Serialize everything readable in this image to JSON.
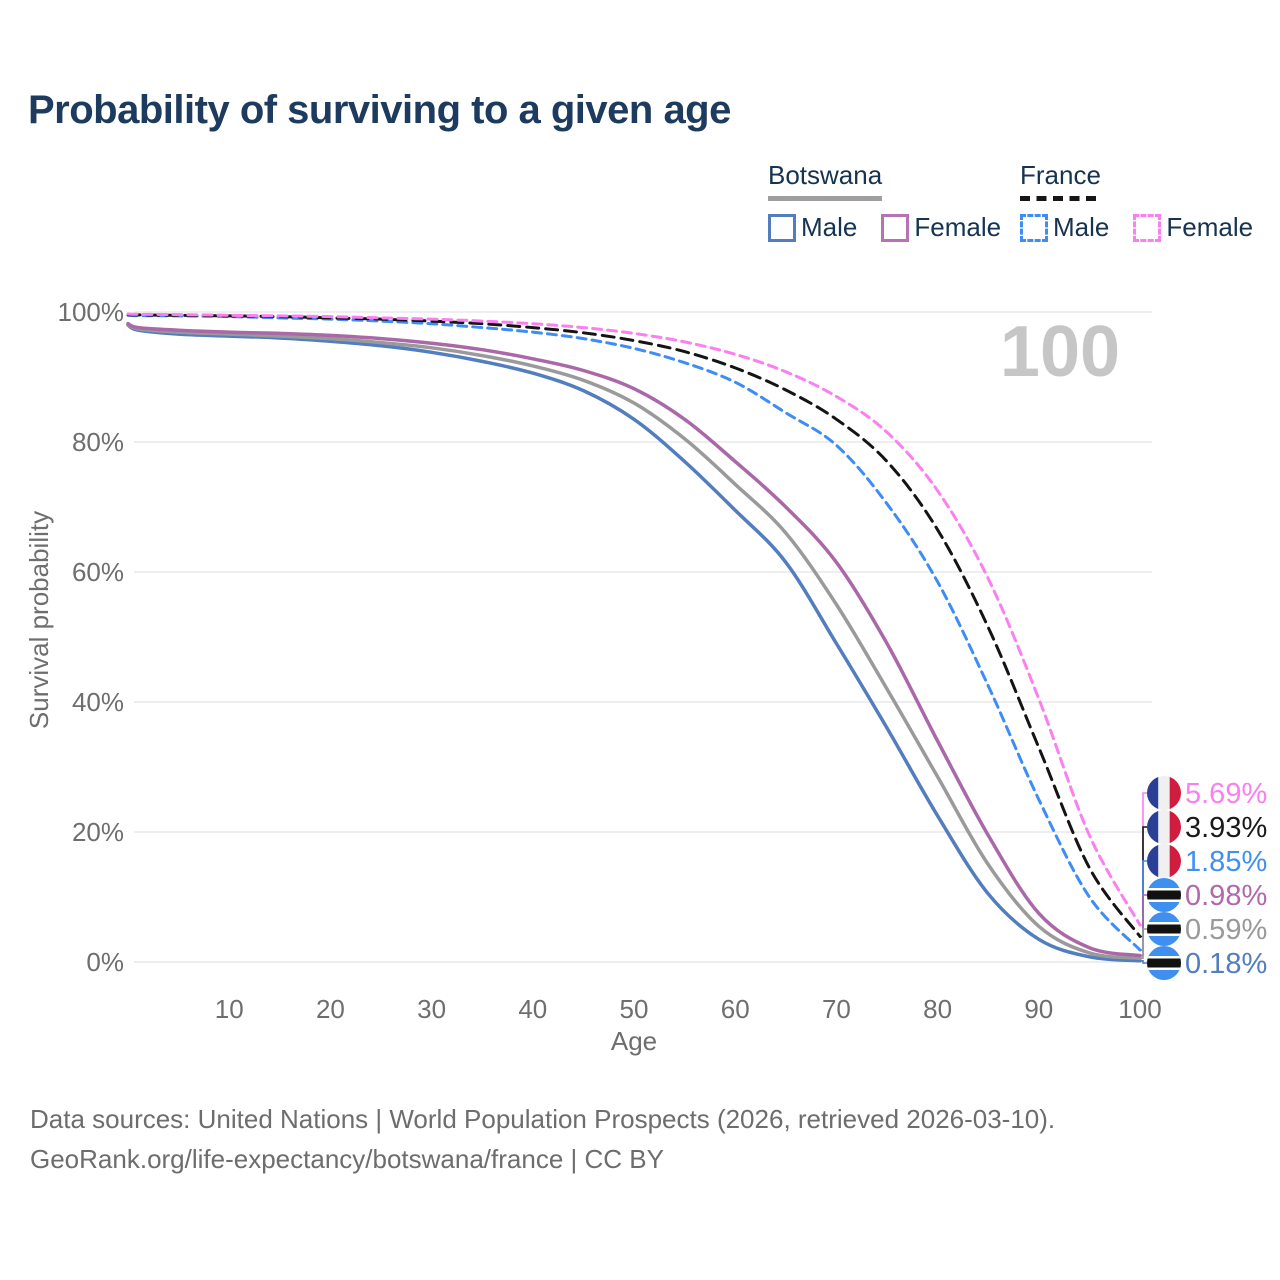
{
  "header": {
    "title": "Probability of surviving to a given age"
  },
  "legend": {
    "groups": [
      {
        "label": "Botswana",
        "line_style": "solid",
        "underline_color": "#9e9e9e",
        "items": [
          {
            "label": "Male",
            "color": "#527dbe"
          },
          {
            "label": "Female",
            "color": "#b673b4"
          }
        ]
      },
      {
        "label": "France",
        "line_style": "dashed",
        "underline_color": "#161616",
        "items": [
          {
            "label": "Male",
            "color": "#3d8df5"
          },
          {
            "label": "Female",
            "color": "#fb7ff0"
          }
        ]
      }
    ]
  },
  "chart_data": {
    "type": "line",
    "title": "Probability of surviving to a given age",
    "xlabel": "Age",
    "ylabel": "Survival probability",
    "xlim": [
      0,
      100
    ],
    "ylim": [
      0,
      100
    ],
    "grid": "horizontal",
    "grid_color": "#e8e8e8",
    "axis_text_color": "#6e6e6e",
    "annotation": {
      "text": "100",
      "color": "#c6c6c6"
    },
    "x_ticks": [
      "10",
      "20",
      "30",
      "40",
      "50",
      "60",
      "70",
      "80",
      "90",
      "100"
    ],
    "x_tick_values": [
      10,
      20,
      30,
      40,
      50,
      60,
      70,
      80,
      90,
      100
    ],
    "y_ticks": [
      "0%",
      "20%",
      "40%",
      "60%",
      "80%",
      "100%"
    ],
    "y_tick_values": [
      0,
      20,
      40,
      60,
      80,
      100
    ],
    "ages": [
      0,
      1,
      5,
      10,
      15,
      20,
      25,
      30,
      35,
      40,
      45,
      50,
      55,
      60,
      65,
      70,
      75,
      80,
      85,
      90,
      95,
      100
    ],
    "series": [
      {
        "name": "Botswana Male",
        "country": "Botswana",
        "sex": "Male",
        "style": "solid",
        "color": "#527dbe",
        "end_label": "0.18%",
        "end_label_color": "#527dbe",
        "values": [
          98.0,
          97.2,
          96.6,
          96.3,
          96.0,
          95.5,
          94.8,
          93.8,
          92.4,
          90.6,
          87.9,
          83.5,
          77.0,
          69.5,
          61.5,
          49.0,
          36.0,
          22.5,
          10.5,
          3.5,
          0.8,
          0.18
        ]
      },
      {
        "name": "Botswana",
        "country": "Botswana",
        "sex": "Both",
        "style": "solid",
        "color": "#9a9a9a",
        "end_label": "0.59%",
        "end_label_color": "#9a9a9a",
        "values": [
          98.1,
          97.4,
          96.9,
          96.6,
          96.3,
          95.9,
          95.3,
          94.5,
          93.3,
          91.7,
          89.5,
          86.0,
          80.5,
          73.5,
          66.0,
          55.0,
          42.0,
          28.5,
          15.0,
          5.5,
          1.4,
          0.59
        ]
      },
      {
        "name": "Botswana Female",
        "country": "Botswana",
        "sex": "Female",
        "style": "solid",
        "color": "#aa68a8",
        "end_label": "0.98%",
        "end_label_color": "#b168ad",
        "values": [
          98.2,
          97.6,
          97.2,
          96.9,
          96.7,
          96.4,
          95.9,
          95.2,
          94.2,
          92.8,
          91.0,
          88.2,
          83.5,
          77.0,
          70.0,
          61.5,
          49.0,
          34.0,
          19.5,
          7.5,
          2.2,
          0.98
        ]
      },
      {
        "name": "France Male",
        "country": "France",
        "sex": "Male",
        "style": "dashed",
        "color": "#3d8df5",
        "end_label": "1.85%",
        "end_label_color": "#4090f0",
        "values": [
          99.5,
          99.45,
          99.4,
          99.3,
          99.1,
          98.9,
          98.6,
          98.2,
          97.6,
          96.9,
          95.9,
          94.4,
          92.2,
          89.2,
          84.5,
          79.5,
          70.5,
          58.5,
          42.5,
          25.0,
          10.0,
          1.85
        ]
      },
      {
        "name": "France",
        "country": "France",
        "sex": "Both",
        "style": "dashed",
        "color": "#141414",
        "end_label": "3.93%",
        "end_label_color": "#1a1a1a",
        "values": [
          99.6,
          99.55,
          99.5,
          99.4,
          99.3,
          99.1,
          98.9,
          98.6,
          98.2,
          97.6,
          96.8,
          95.6,
          93.9,
          91.4,
          88.0,
          83.5,
          77.0,
          66.5,
          51.5,
          33.0,
          14.5,
          3.93
        ]
      },
      {
        "name": "France Female",
        "country": "France",
        "sex": "Female",
        "style": "dashed",
        "color": "#fb7ff0",
        "end_label": "5.69%",
        "end_label_color": "#fb7ff0",
        "values": [
          99.7,
          99.65,
          99.6,
          99.5,
          99.4,
          99.3,
          99.1,
          98.9,
          98.6,
          98.2,
          97.6,
          96.7,
          95.4,
          93.5,
          90.8,
          87.0,
          81.5,
          72.5,
          59.0,
          40.5,
          19.5,
          5.69
        ]
      }
    ],
    "end_label_order_top_to_bottom": [
      "France Female",
      "France",
      "France Male",
      "Botswana Female",
      "Botswana",
      "Botswana Male"
    ],
    "flags": {
      "France": {
        "type": "vertical-tricolor",
        "colors": [
          "#2a3f96",
          "#f0f0f0",
          "#d01c3f"
        ]
      },
      "Botswana": {
        "type": "horizontal-band",
        "colors": [
          "#3f8ff0",
          "#ffffff",
          "#111111"
        ]
      }
    }
  },
  "footer": {
    "line1": "Data sources: United Nations | World Population Prospects (2026, retrieved 2026-03-10).",
    "line2": "GeoRank.org/life-expectancy/botswana/france | CC BY"
  }
}
